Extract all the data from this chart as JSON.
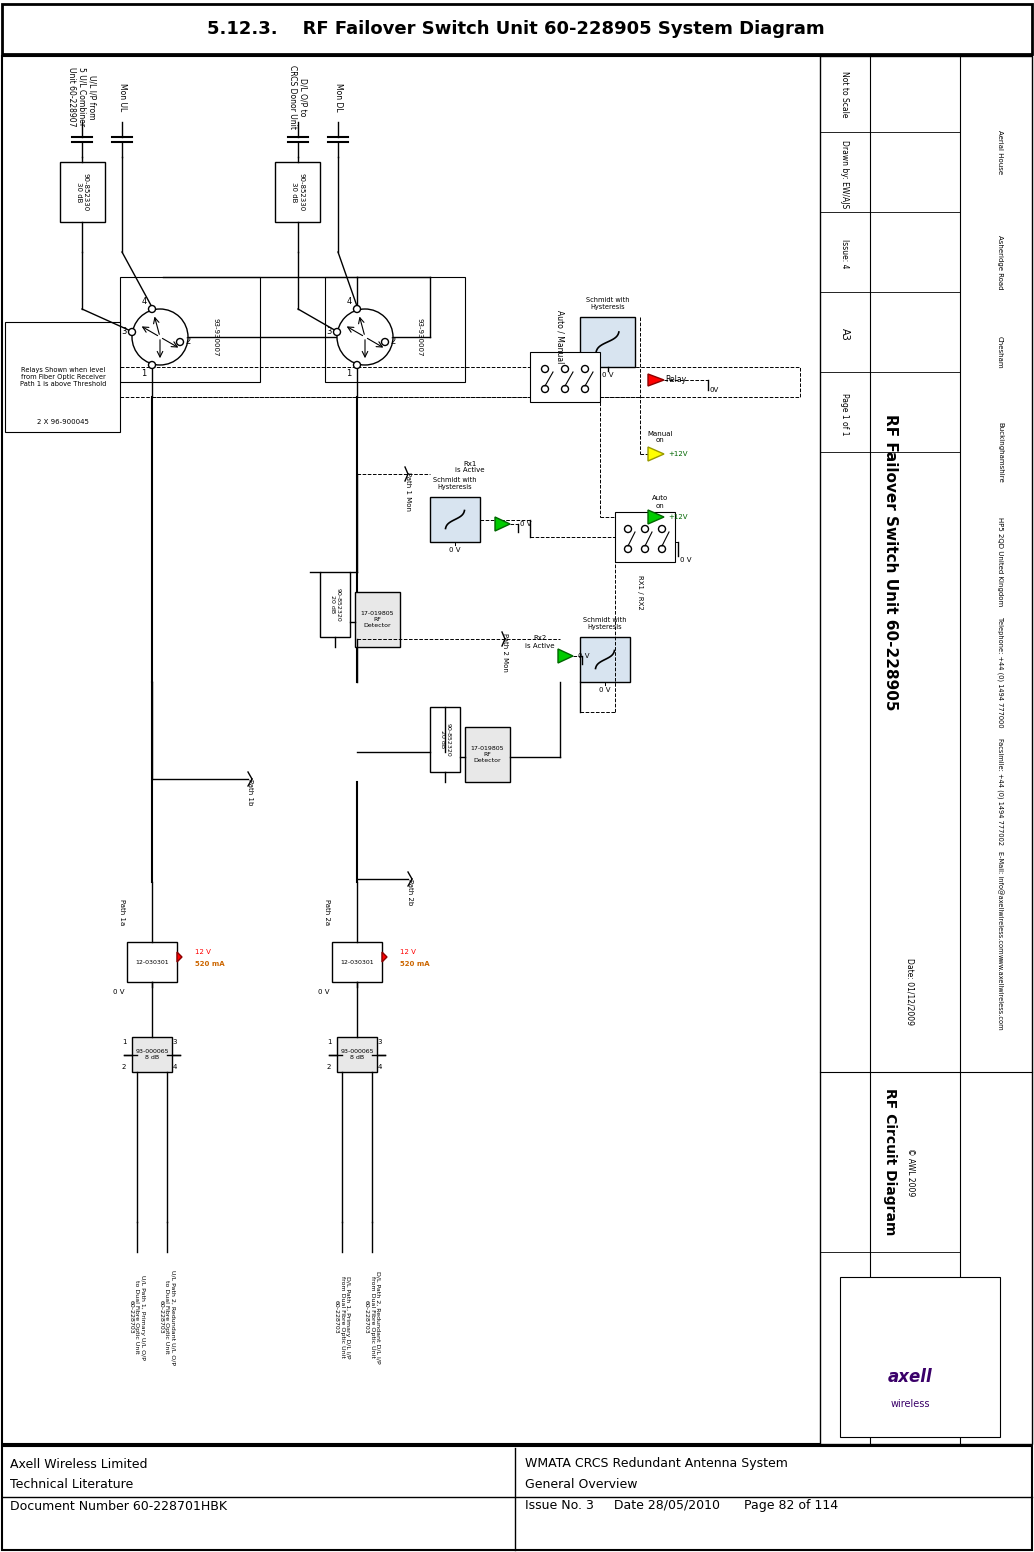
{
  "title": "5.12.3.    RF Failover Switch Unit 60-228905 System Diagram",
  "footer_left1": "Axell Wireless Limited",
  "footer_left2": "Technical Literature",
  "footer_left3": "Document Number 60-228701HBK",
  "footer_right1": "WMATA CRCS Redundant Antenna System",
  "footer_right2": "General Overview",
  "footer_right3": "Issue No. 3     Date 28/05/2010      Page 82 of 114",
  "title_block_title1": "RF Failover Switch Unit 60-228905",
  "title_block_title2": "RF Circuit Diagram",
  "tb_date": "Date: 01/12/2009",
  "tb_drawn": "Drawn by: EW/AJS",
  "tb_scale": "Not to Scale",
  "tb_issue": "Issue: 4",
  "tb_page": "Page 1 of 1",
  "tb_size": "A3",
  "tb_copy": "© AWL 2009",
  "company_name": "Aerial House",
  "company_addr1": "Asheridge Road",
  "company_addr2": "Chesham",
  "company_addr3": "Buckinghamshire",
  "company_addr4": "HP5 2QD United Kingdom",
  "company_tel": "Telephone: +44 (0) 1494 777000",
  "company_fax": "Facsimile: +44 (0) 1494 777002",
  "company_email": "E-Mail: info@axellwireless.com",
  "company_web": "www.axellwireless.com",
  "bg_color": "#ffffff"
}
